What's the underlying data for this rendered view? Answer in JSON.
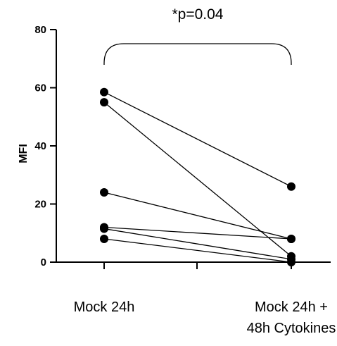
{
  "chart_data": {
    "type": "scatter",
    "ylabel": "MFI",
    "ylim": [
      0,
      80
    ],
    "yticks": [
      0,
      20,
      40,
      60,
      80
    ],
    "categories": [
      "Mock 24h",
      "Mock 24h + 48h Cytokines"
    ],
    "category_label_lines": [
      [
        "Mock 24h"
      ],
      [
        "Mock 24h +",
        "48h Cytokines"
      ]
    ],
    "annotation": "*p=0.04",
    "pairs": [
      [
        58.5,
        26
      ],
      [
        55,
        2
      ],
      [
        24,
        8
      ],
      [
        12,
        8
      ],
      [
        11.5,
        1
      ],
      [
        8,
        0
      ]
    ]
  }
}
